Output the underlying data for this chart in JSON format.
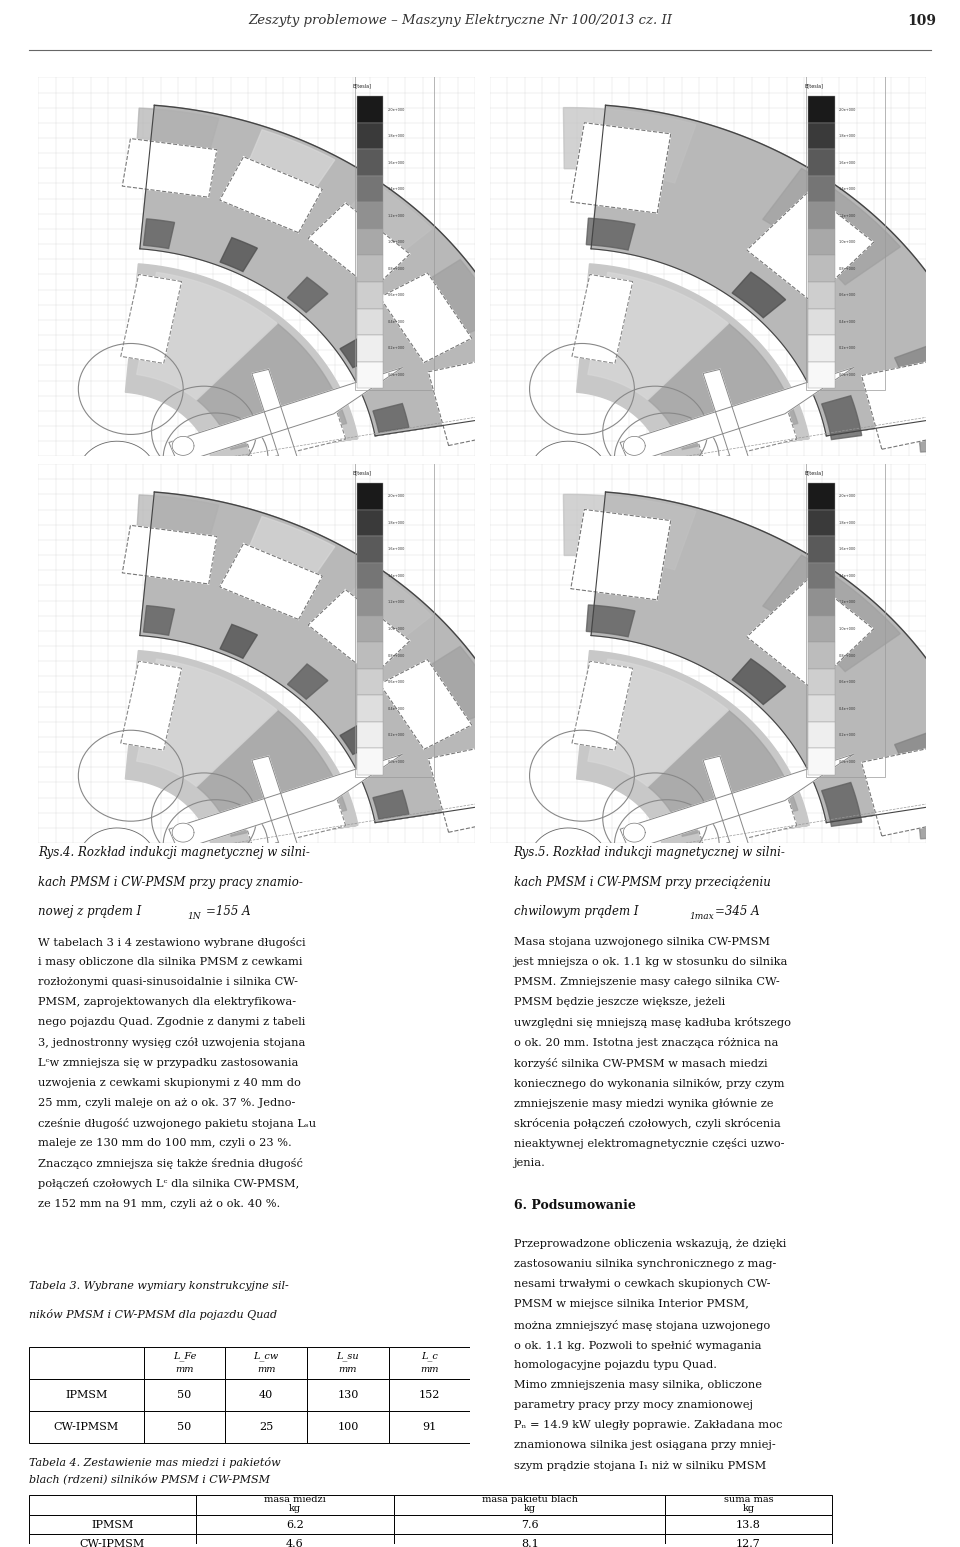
{
  "header_title": "Zeszyty problemowe – Maszyny Elektryczne Nr 100/2013 cz. II",
  "header_page": "109",
  "fig4_cap1": "Rys.4. Rozkład indukcji magnetycznej w silni-",
  "fig4_cap2": "kach PMSM i CW-PMSM przy pracy znamio-",
  "fig4_cap3": "nowej z prądem I",
  "fig4_cap3_sub": "1N",
  "fig4_cap3_end": "=155 A",
  "fig5_cap1": "Rys.5. Rozkład indukcji magnetycznej w silni-",
  "fig5_cap2": "kach PMSM i CW-PMSM przy przeciążeniu",
  "fig5_cap3": "chwilowym prądem I",
  "fig5_cap3_sub": "1max",
  "fig5_cap3_end": "=345 A",
  "left_col": [
    {
      "text": "W tabelach 3 i 4 zestawiono wybrane długości",
      "bold": false
    },
    {
      "text": "i masy obliczone dla silnika PMSM z cewkami",
      "bold": false
    },
    {
      "text": "rozłożonymi quasi-sinusoidalnie i silnika CW-",
      "bold": false
    },
    {
      "text": "PMSM, zaprojektowanych dla elektryfikowa-",
      "bold": false
    },
    {
      "text": "nego pojazdu Quad. Zgodnie z danymi z tabeli",
      "bold": false
    },
    {
      "text": "3, jednostronny wysięg czół uzwojenia stojana",
      "bold": false
    },
    {
      "text": "Lᶜw zmniejsza się w przypadku zastosowania",
      "bold": false
    },
    {
      "text": "uzwojenia z cewkami skupionymi z 40 mm do",
      "bold": false
    },
    {
      "text": "25 mm, czyli maleje on aż o ok. 37 %. Jedno-",
      "bold": false
    },
    {
      "text": "cześnie długość uzwojonego pakietu stojana Lₛu",
      "bold": false
    },
    {
      "text": "maleje ze 130 mm do 100 mm, czyli o 23 %.",
      "bold": false
    },
    {
      "text": "Znacząco zmniejsza się także średnia długość",
      "bold": false
    },
    {
      "text": "połączeń czołowych Lᶜ dla silnika CW-PMSM,",
      "bold": false
    },
    {
      "text": "ze 152 mm na 91 mm, czyli aż o ok. 40 %.",
      "bold": false
    }
  ],
  "right_col": [
    {
      "text": "Masa stojana uzwojonego silnika CW-PMSM",
      "bold": false
    },
    {
      "text": "jest mniejsza o ok. 1.1 kg w stosunku do silnika",
      "bold": false
    },
    {
      "text": "PMSM. Zmniejszenie masy całego silnika CW-",
      "bold": false
    },
    {
      "text": "PMSM będzie jeszcze większe, jeżeli",
      "bold": false
    },
    {
      "text": "uwzględni się mniejszą masę kadłuba krótszego",
      "bold": false
    },
    {
      "text": "o ok. 20 mm. Istotna jest znacząca różnica na",
      "bold": false
    },
    {
      "text": "korzyść silnika CW-PMSM w masach miedzi",
      "bold": false
    },
    {
      "text": "koniecznego do wykonania silników, przy czym",
      "bold": false
    },
    {
      "text": "zmniejszenie masy miedzi wynika głównie ze",
      "bold": false
    },
    {
      "text": "skrócenia połączeń czołowych, czyli skrócenia",
      "bold": false
    },
    {
      "text": "nieaktywnej elektromagnetycznie części uzwo-",
      "bold": false
    },
    {
      "text": "jenia.",
      "bold": false
    },
    {
      "text": "",
      "bold": false
    },
    {
      "text": "6. Podsumowanie",
      "bold": true
    },
    {
      "text": "",
      "bold": false
    },
    {
      "text": "Przeprowadzone obliczenia wskazują, że dzięki",
      "bold": false
    },
    {
      "text": "zastosowaniu silnika synchronicznego z mag-",
      "bold": false
    },
    {
      "text": "nesami trwałymi o cewkach skupionych CW-",
      "bold": false
    },
    {
      "text": "PMSM w miejsce silnika Interior PMSM,",
      "bold": false
    },
    {
      "text": "można zmniejszyć masę stojana uzwojonego",
      "bold": false
    },
    {
      "text": "o ok. 1.1 kg. Pozwoli to spełnić wymagania",
      "bold": false
    },
    {
      "text": "homologacyjne pojazdu typu Quad.",
      "bold": false
    },
    {
      "text": "Mimo zmniejszenia masy silnika, obliczone",
      "bold": false
    },
    {
      "text": "parametry pracy przy mocy znamionowej",
      "bold": false
    },
    {
      "text": "Pₙ = 14.9 kW uległy poprawie. Zakładana moc",
      "bold": false
    },
    {
      "text": "znamionowa silnika jest osiągana przy mniej-",
      "bold": false
    },
    {
      "text": "szym prądzie stojana I₁ niż w silniku PMSM",
      "bold": false
    }
  ],
  "table3_title1": "Tabela 3. Wybrane wymiary konstrukcyjne sil-",
  "table3_title2": "ników PMSM i CW-PMSM dla pojazdu Quad",
  "table3_col_headers": [
    "",
    "L_Fe\nmm",
    "L_cw\nmm",
    "L_su\nmm",
    "L_c\nmm"
  ],
  "table3_rows": [
    [
      "IPMSM",
      "50",
      "40",
      "130",
      "152"
    ],
    [
      "CW-IPMSM",
      "50",
      "25",
      "100",
      "91"
    ]
  ],
  "table4_title1": "Tabela 4. Zestawienie mas miedzi i pakietów",
  "table4_title2": "blach (rdzeni) silników PMSM i CW-PMSM",
  "table4_col_headers": [
    "",
    "masa miedzi\nkg",
    "masa pakietu blach\nkg",
    "suma mas\nkg"
  ],
  "table4_rows": [
    [
      "IPMSM",
      "6.2",
      "7.6",
      "13.8"
    ],
    [
      "CW-IPMSM",
      "4.6",
      "8.1",
      "12.7"
    ]
  ]
}
